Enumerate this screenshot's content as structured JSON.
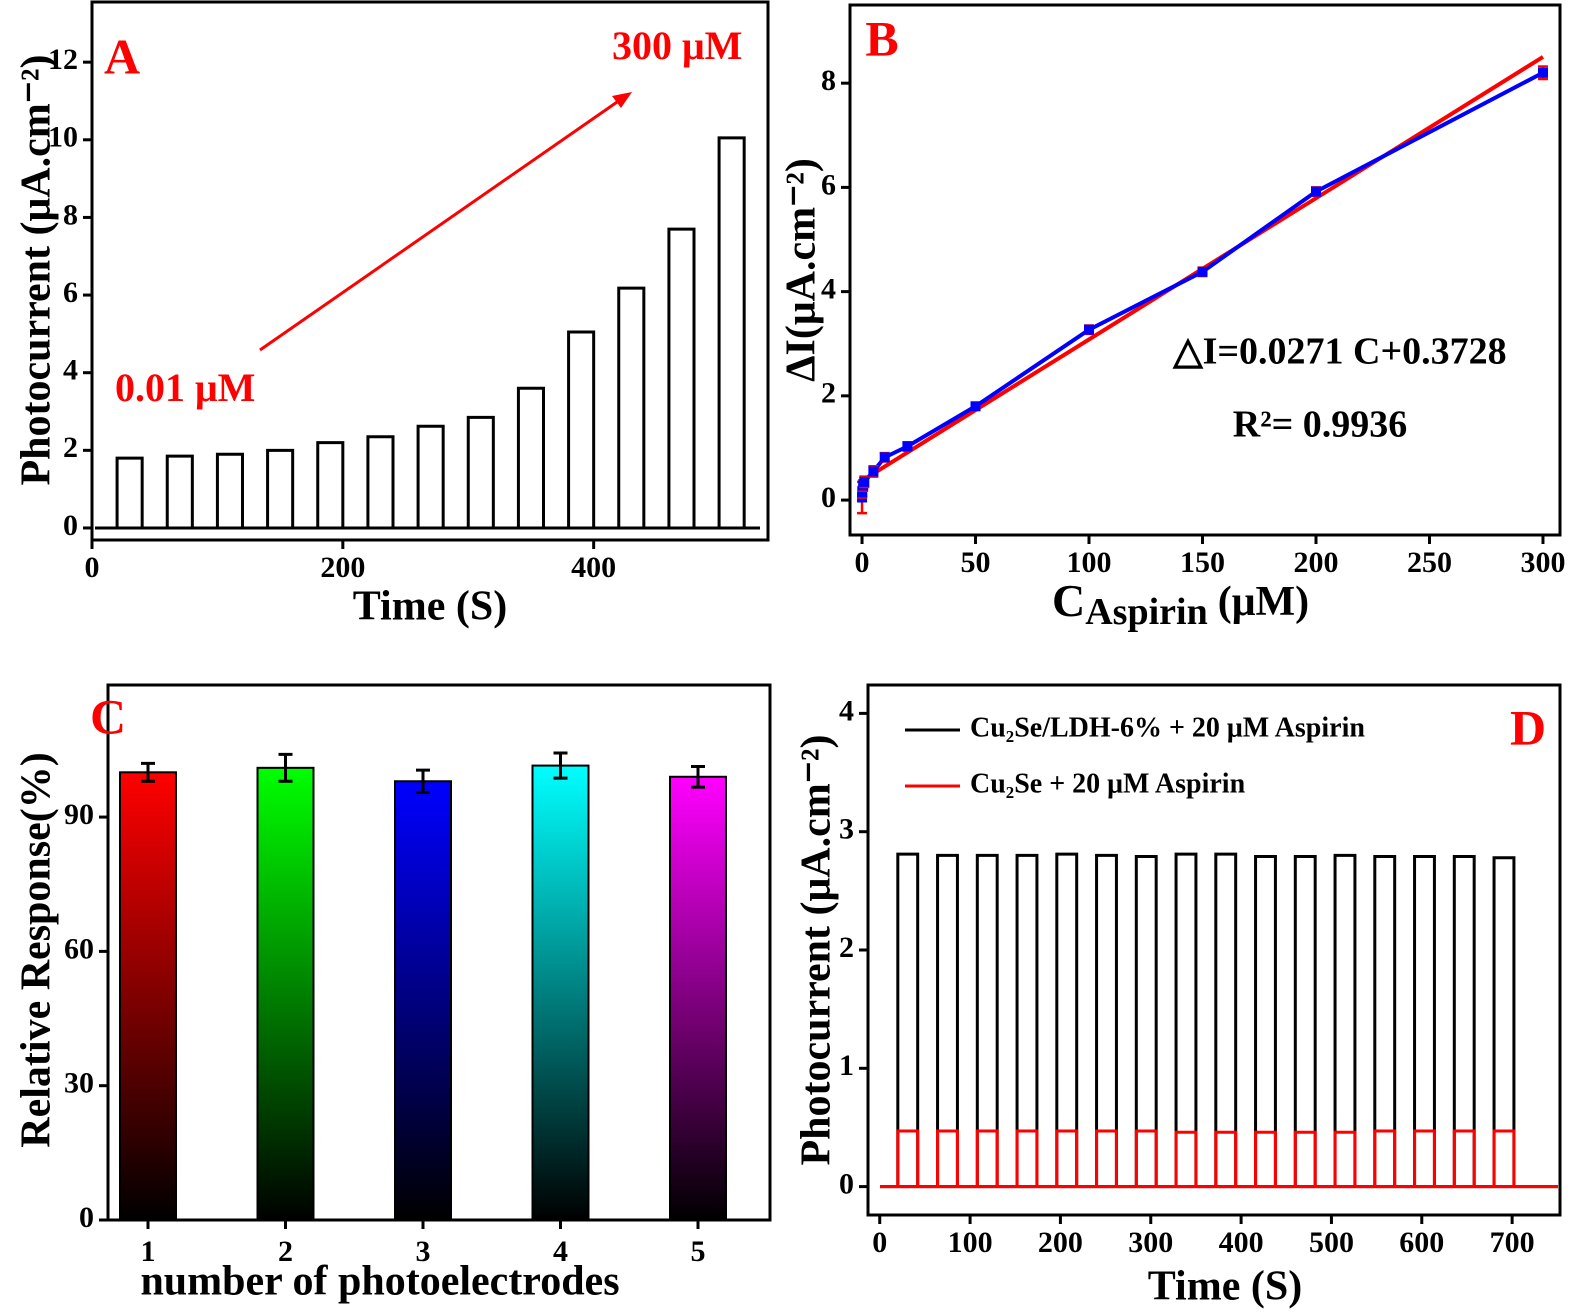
{
  "chart_data": [
    {
      "type": "pulse",
      "panel_label": "A",
      "xlabel": "Time (S)",
      "ylabel": "Photocurrent (μA.cm⁻²)",
      "xlim": [
        0,
        539
      ],
      "ylim": [
        -0.31,
        13.55
      ],
      "xticks": [
        0,
        200,
        400
      ],
      "yticks": [
        0,
        2,
        4,
        6,
        8,
        10,
        12
      ],
      "x_on": [
        20,
        60,
        100,
        140,
        180,
        220,
        260,
        300,
        340,
        380,
        420,
        460,
        500
      ],
      "x_off": [
        40,
        80,
        120,
        160,
        200,
        240,
        280,
        320,
        360,
        400,
        440,
        480,
        520
      ],
      "series": [
        {
          "color": "#000000",
          "values": [
            1.8,
            1.85,
            1.9,
            2.0,
            2.2,
            2.35,
            2.62,
            2.85,
            3.6,
            5.05,
            6.18,
            7.7,
            10.05
          ]
        }
      ],
      "annotations": [
        {
          "text": "0.01 μM",
          "color": "#ff0000"
        },
        {
          "text": "300 μM",
          "color": "#ff0000"
        }
      ]
    },
    {
      "type": "scatter",
      "panel_label": "B",
      "xlabel_parts": [
        "C",
        "Aspirin",
        "(μM)"
      ],
      "ylabel": "ΔI(μA.cm⁻²)",
      "xlim": [
        -5.3,
        307.5
      ],
      "ylim": [
        -0.67,
        9.5
      ],
      "xticks": [
        0,
        50,
        100,
        150,
        200,
        250,
        300
      ],
      "yticks": [
        0,
        2,
        4,
        6,
        8
      ],
      "series": [
        {
          "color": "#0000ff",
          "error_color": "#ff0000",
          "x": [
            0.01,
            0.1,
            0.5,
            1,
            5,
            10,
            20,
            50,
            100,
            150,
            200,
            300
          ],
          "values": [
            0.05,
            0.15,
            0.28,
            0.35,
            0.55,
            0.82,
            1.03,
            1.8,
            3.27,
            4.38,
            5.92,
            8.2
          ],
          "errors": [
            0.3,
            0.1,
            0.1,
            0.1,
            0.1,
            0.08,
            0.08,
            0.05,
            0.08,
            0.08,
            0.08,
            0.12
          ]
        },
        {
          "color": "#ff0000",
          "x": [
            0,
            300
          ],
          "values": [
            0.3728,
            8.5028
          ]
        }
      ],
      "annotations": [
        {
          "text": "△I=0.0271 C+0.3728"
        },
        {
          "text": "R²= 0.9936"
        }
      ]
    },
    {
      "type": "bar",
      "panel_label": "C",
      "xlabel": "number of photoelectrodes",
      "ylabel": "Relative Response(%)",
      "categories": [
        "1",
        "2",
        "3",
        "4",
        "5"
      ],
      "values": [
        100,
        101,
        98,
        101.5,
        99
      ],
      "errors": [
        2,
        3,
        2.5,
        2.8,
        2.3
      ],
      "colors": [
        "#ff0000",
        "#00ff00",
        "#0000ff",
        "#00ffff",
        "#ff00ff"
      ],
      "ylim": [
        0,
        119.5
      ],
      "yticks": [
        0,
        30,
        60,
        90
      ]
    },
    {
      "type": "pulse",
      "panel_label": "D",
      "xlabel": "Time (S)",
      "ylabel": "Photocurrent (μA.cm⁻²)",
      "xlim": [
        -13,
        753
      ],
      "ylim": [
        -0.24,
        4.24
      ],
      "xticks": [
        0,
        100,
        200,
        300,
        400,
        500,
        600,
        700
      ],
      "yticks": [
        0,
        1,
        2,
        3,
        4
      ],
      "x_on": [
        20,
        64,
        108,
        152,
        196,
        240,
        284,
        328,
        372,
        416,
        460,
        504,
        548,
        592,
        636,
        680
      ],
      "x_off": [
        42,
        86,
        130,
        174,
        218,
        262,
        306,
        350,
        394,
        438,
        482,
        526,
        570,
        614,
        658,
        702
      ],
      "series": [
        {
          "name": "Cu₂Se/LDH-6% + 20 μM Aspirin",
          "color": "#000000",
          "values": [
            2.81,
            2.8,
            2.8,
            2.8,
            2.81,
            2.8,
            2.79,
            2.81,
            2.81,
            2.79,
            2.79,
            2.8,
            2.79,
            2.79,
            2.79,
            2.78
          ]
        },
        {
          "name": "Cu₂Se + 20 μM Aspirin",
          "color": "#ff0000",
          "values": [
            0.47,
            0.47,
            0.47,
            0.47,
            0.47,
            0.47,
            0.47,
            0.46,
            0.46,
            0.46,
            0.46,
            0.46,
            0.47,
            0.47,
            0.47,
            0.47
          ]
        }
      ]
    }
  ]
}
